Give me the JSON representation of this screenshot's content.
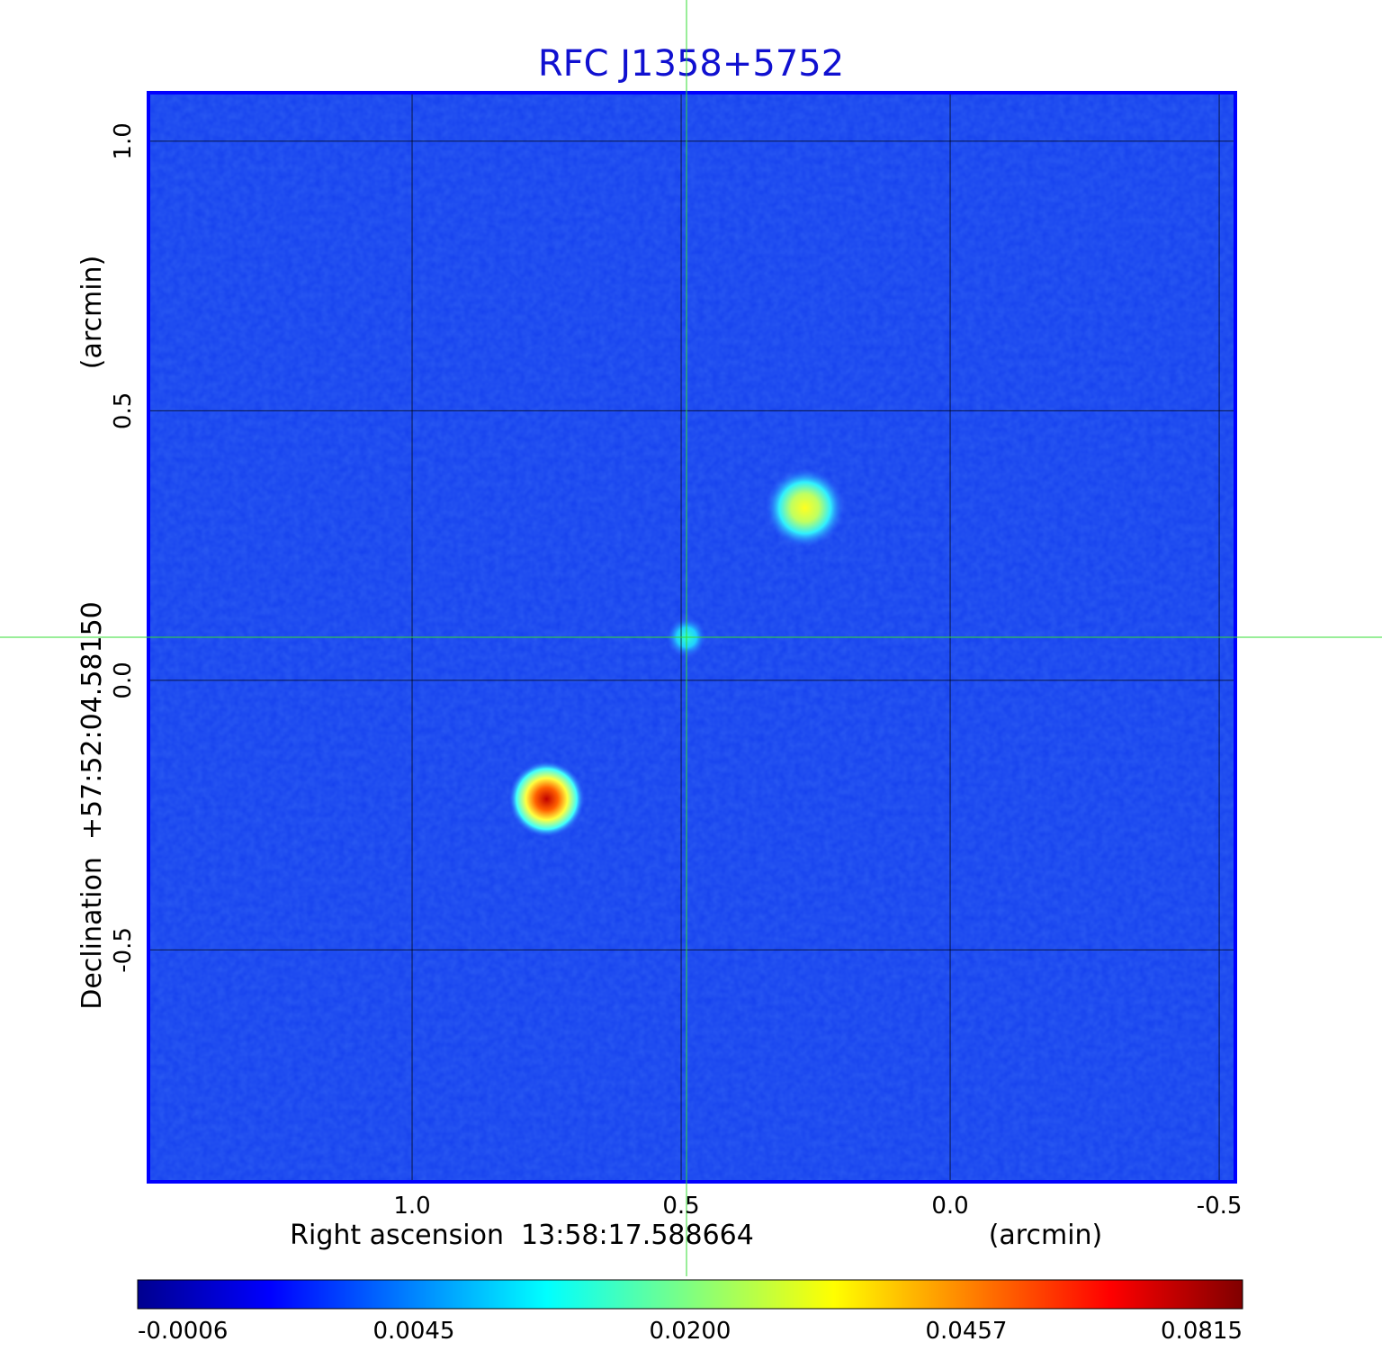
{
  "chart_data": {
    "type": "heatmap",
    "title": "RFC J1358+5752",
    "xlabel": "Right ascension  13:58:17.588664",
    "xunit": "(arcmin)",
    "ylabel": "Declination  +57:52:04.58150",
    "yunit": "(arcmin)",
    "x_ticks": [
      "1.0",
      "0.5",
      "0.0",
      "-0.5"
    ],
    "x_tick_values": [
      1.0,
      0.5,
      0.0,
      -0.5
    ],
    "y_ticks": [
      "1.0",
      "0.5",
      "0.0",
      "-0.5"
    ],
    "y_tick_values": [
      1.0,
      0.5,
      0.0,
      -0.5
    ],
    "xlim": [
      1.49,
      -0.53
    ],
    "ylim": [
      -0.93,
      1.09
    ],
    "grid": true,
    "crosshair": {
      "x": 0.49,
      "y": 0.08,
      "color": "#33dd33"
    },
    "colormap": "jet",
    "colorbar_ticks": [
      "-0.0006",
      "0.0045",
      "0.0200",
      "0.0457",
      "0.0815"
    ],
    "colorbar_values": [
      -0.0006,
      0.0045,
      0.02,
      0.0457,
      0.0815
    ],
    "sources": [
      {
        "x": 0.75,
        "y": -0.22,
        "peak": 0.0815
      },
      {
        "x": 0.27,
        "y": 0.32,
        "peak": 0.046
      },
      {
        "x": 0.49,
        "y": 0.08,
        "peak": 0.012
      }
    ],
    "background_color": "#1540ee"
  }
}
